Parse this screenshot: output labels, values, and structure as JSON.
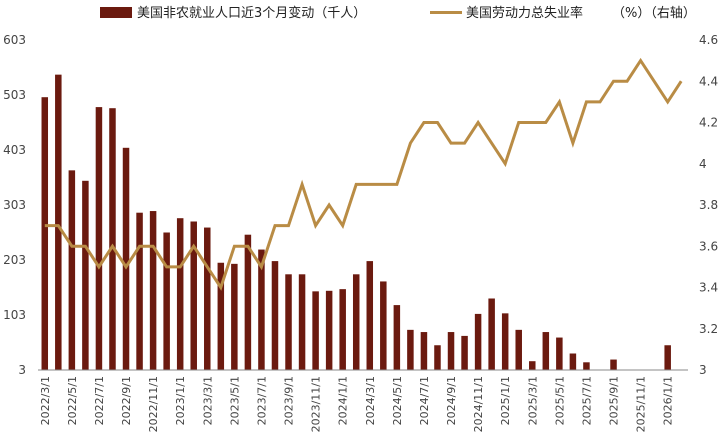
{
  "chart_data": {
    "type": "bar+line",
    "legend_position": "top",
    "grid": false,
    "colors": {
      "bars": "#6b1a0f",
      "line": "#b98c45",
      "axis": "#888888"
    },
    "x": [
      "2022/3/1",
      "2022/4/1",
      "2022/5/1",
      "2022/6/1",
      "2022/7/1",
      "2022/8/1",
      "2022/9/1",
      "2022/10/1",
      "2022/11/1",
      "2022/12/1",
      "2023/1/1",
      "2023/2/1",
      "2023/3/1",
      "2023/4/1",
      "2023/5/1",
      "2023/6/1",
      "2023/7/1",
      "2023/8/1",
      "2023/9/1",
      "2023/10/1",
      "2023/11/1",
      "2023/12/1",
      "2024/1/1",
      "2024/2/1",
      "2024/3/1",
      "2024/4/1",
      "2024/5/1",
      "2024/6/1",
      "2024/7/1",
      "2024/8/1",
      "2024/9/1",
      "2024/10/1",
      "2024/11/1",
      "2024/12/1",
      "2025/1/1",
      "2025/2/1",
      "2025/3/1",
      "2025/4/1",
      "2025/5/1",
      "2025/6/1",
      "2025/7/1",
      "2025/8/1",
      "2025/9/1",
      "2025/10/1",
      "2025/11/1",
      "2025/12/1",
      "2026/1/1",
      "2026/2/1"
    ],
    "x_tick_labels": [
      "2022/3/1",
      "2022/5/1",
      "2022/7/1",
      "2022/9/1",
      "2022/11/1",
      "2023/1/1",
      "2023/3/1",
      "2023/5/1",
      "2023/7/1",
      "2023/9/1",
      "2023/11/1",
      "2024/1/1",
      "2024/3/1",
      "2024/5/1",
      "2024/7/1",
      "2024/9/1",
      "2024/11/1",
      "2025/1/1",
      "2025/3/1",
      "2025/5/1",
      "2025/7/1",
      "2025/9/1",
      "2025/11/1",
      "2026/1/1"
    ],
    "y_left": {
      "ticks": [
        3,
        103,
        203,
        303,
        403,
        503,
        603
      ],
      "range": [
        3,
        603
      ]
    },
    "y_right": {
      "ticks": [
        3,
        3.2,
        3.4,
        3.6,
        3.8,
        4,
        4.2,
        4.4,
        4.6
      ],
      "range": [
        3,
        4.6
      ]
    },
    "series": [
      {
        "name": "美国非农就业人口近3个月变动（千人）",
        "type": "bar",
        "axis": "left",
        "values": [
          499,
          540,
          366,
          347,
          481,
          479,
          407,
          289,
          292,
          253,
          279,
          273,
          262,
          198,
          196,
          249,
          222,
          201,
          177,
          177,
          146,
          147,
          150,
          177,
          201,
          164,
          121,
          76,
          72,
          48,
          72,
          65,
          105,
          133,
          106,
          76,
          19,
          72,
          62,
          33,
          17,
          0,
          22,
          0,
          0,
          0,
          48,
          3
        ]
      },
      {
        "name": "美国劳动力总失业率",
        "type": "line",
        "axis": "right",
        "values": [
          3.7,
          3.7,
          3.6,
          3.6,
          3.5,
          3.6,
          3.5,
          3.6,
          3.6,
          3.5,
          3.5,
          3.6,
          3.5,
          3.4,
          3.6,
          3.6,
          3.5,
          3.7,
          3.7,
          3.9,
          3.7,
          3.8,
          3.7,
          3.9,
          3.9,
          3.9,
          3.9,
          4.1,
          4.2,
          4.2,
          4.1,
          4.1,
          4.2,
          4.1,
          4.0,
          4.2,
          4.2,
          4.2,
          4.3,
          4.1,
          4.3,
          4.3,
          4.4,
          4.4,
          4.5,
          4.4,
          4.3,
          4.4
        ]
      }
    ],
    "legend": {
      "bars_label": "美国非农就业人口近3个月变动（千人）",
      "line_label": "美国劳动力总失业率",
      "line_unit": "（%）（右轴）"
    }
  }
}
